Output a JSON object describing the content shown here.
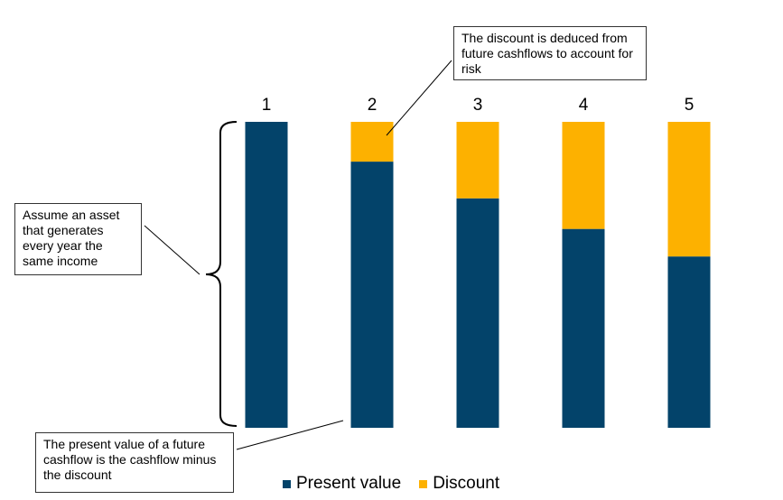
{
  "colors": {
    "present_value": "#03436a",
    "discount": "#fdb100"
  },
  "chart_data": {
    "type": "bar",
    "stacked": true,
    "categories": [
      "1",
      "2",
      "3",
      "4",
      "5"
    ],
    "series": [
      {
        "name": "Present value",
        "values": [
          100,
          87,
          75,
          65,
          56
        ]
      },
      {
        "name": "Discount",
        "values": [
          0,
          13,
          25,
          35,
          44
        ]
      }
    ],
    "ylim": [
      0,
      100
    ],
    "grid": false,
    "legend_position": "bottom"
  },
  "annotations": {
    "asset": "Assume an asset that generates every year the same income",
    "discount": "The discount is deduced from future cashflows to account for risk",
    "present_value": "The present value of a future cashflow is the cashflow minus the discount"
  },
  "legend": {
    "present_value_label": "Present value",
    "discount_label": "Discount"
  }
}
